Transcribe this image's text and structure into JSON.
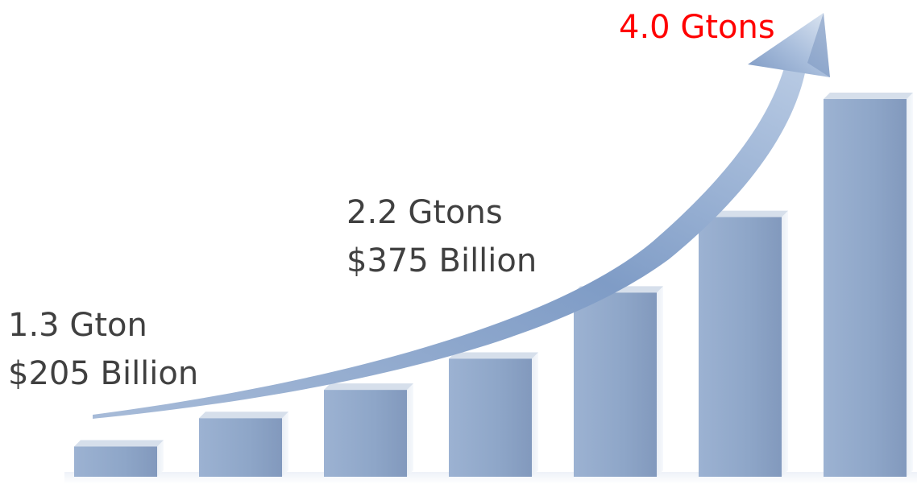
{
  "chart_data": {
    "type": "bar",
    "title": "",
    "xlabel": "",
    "ylabel": "",
    "ylim": [
      0,
      4.5
    ],
    "values": [
      0.32,
      0.62,
      0.92,
      1.25,
      1.95,
      2.75,
      4.0
    ],
    "annotations": [
      {
        "lines": [
          "1.3 Gton",
          "$205 Billion"
        ],
        "color": "#404040"
      },
      {
        "lines": [
          "2.2 Gtons",
          "$375 Billion"
        ],
        "color": "#404040"
      },
      {
        "lines": [
          "4.0 Gtons"
        ],
        "color": "#ff0000"
      }
    ],
    "colors": {
      "bar_front": "#8ea6c8",
      "bar_side": "#dfe6f0",
      "bar_top": "#c5d2e3",
      "arrow": "#7f9cc6",
      "arrow_light": "#c9d6e9"
    },
    "trend_arrow": true
  }
}
